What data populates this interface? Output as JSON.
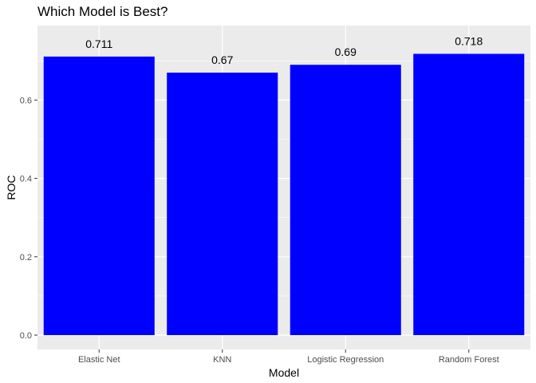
{
  "chart_data": {
    "type": "bar",
    "title": "Which Model is Best?",
    "xlabel": "Model",
    "ylabel": "ROC",
    "categories": [
      "Elastic Net",
      "KNN",
      "Logistic Regression",
      "Random Forest"
    ],
    "values": [
      0.711,
      0.67,
      0.69,
      0.718
    ],
    "data_labels": [
      "0.711",
      "0.67",
      "0.69",
      "0.718"
    ],
    "yticks": [
      0.0,
      0.2,
      0.4,
      0.6
    ],
    "ytick_labels": [
      "0.0",
      "0.2",
      "0.4",
      "0.6"
    ],
    "ylim": [
      0,
      0.75
    ],
    "grid": true,
    "bar_color": "#0000ff",
    "panel_background": "#ebebeb",
    "grid_color": "#ffffff"
  }
}
